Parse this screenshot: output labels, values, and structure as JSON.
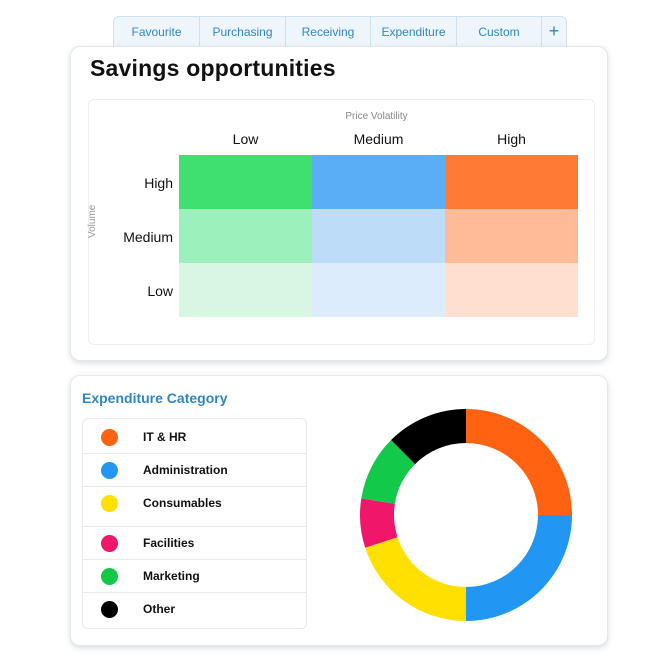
{
  "tabs": {
    "items": [
      {
        "label": "Favourite"
      },
      {
        "label": "Purchasing"
      },
      {
        "label": "Receiving"
      },
      {
        "label": "Expenditure"
      },
      {
        "label": "Custom"
      }
    ],
    "add_label": "+"
  },
  "savings": {
    "title": "Savings opportunities",
    "x_title": "Price Volatility",
    "y_title": "Volume",
    "columns": [
      "Low",
      "Medium",
      "High"
    ],
    "rows": [
      "High",
      "Medium",
      "Low"
    ],
    "colors": [
      [
        "#40e070",
        "#5aaef6",
        "#ff7a35"
      ],
      [
        "#9bf0bc",
        "#bcdcf8",
        "#ffbb97"
      ],
      [
        "#d8f7e2",
        "#dcecfc",
        "#ffdfcf"
      ]
    ]
  },
  "expenditure": {
    "title": "Expenditure Category",
    "categories": [
      {
        "label": "IT & HR",
        "color": "#ff6211"
      },
      {
        "label": "Administration",
        "color": "#2196f3"
      },
      {
        "label": "Consumables",
        "color": "#ffe000"
      },
      {
        "label": "Facilities",
        "color": "#f0166a"
      },
      {
        "label": "Marketing",
        "color": "#12c94a"
      },
      {
        "label": "Other",
        "color": "#000000"
      }
    ]
  },
  "chart_data": {
    "type": "pie",
    "donut": true,
    "categories": [
      "IT & HR",
      "Administration",
      "Consumables",
      "Facilities",
      "Marketing",
      "Other"
    ],
    "values": [
      25,
      25,
      20,
      7.5,
      10,
      12.5
    ],
    "colors": [
      "#ff6211",
      "#2196f3",
      "#ffe000",
      "#f0166a",
      "#12c94a",
      "#000000"
    ],
    "title": "",
    "start_angle": "top, clockwise"
  }
}
